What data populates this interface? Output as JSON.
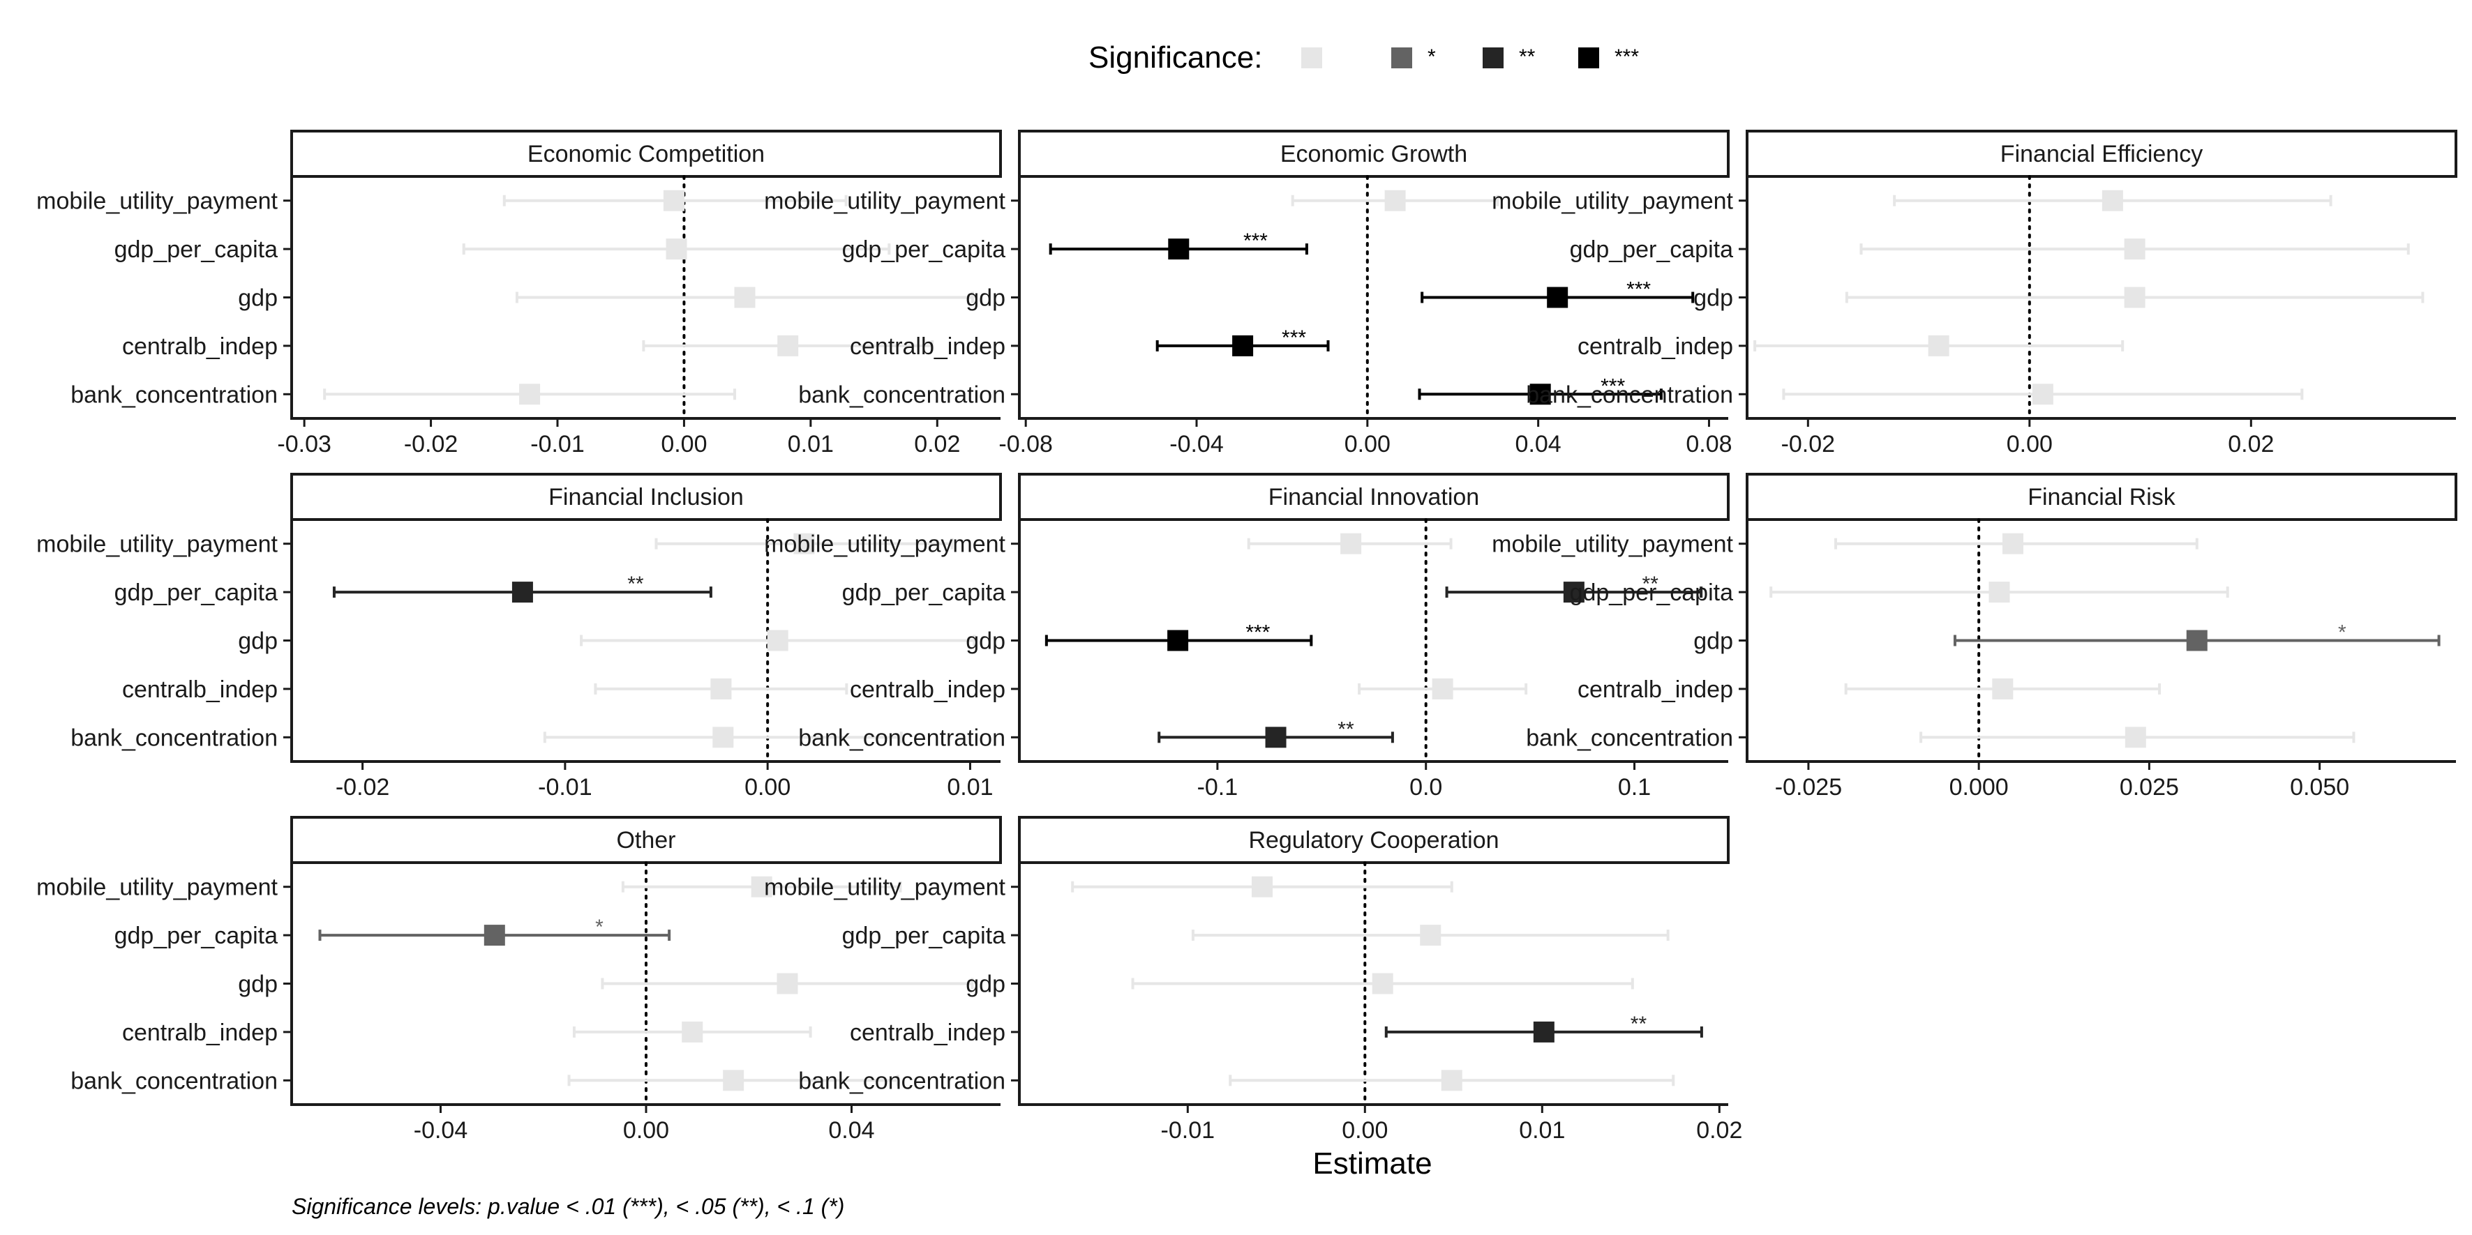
{
  "legend": {
    "title": "Significance:",
    "levels": [
      {
        "label": "",
        "color": "#e6e6e6"
      },
      {
        "label": "*",
        "color": "#636363"
      },
      {
        "label": "**",
        "color": "#252525"
      },
      {
        "label": "***",
        "color": "#000000"
      }
    ]
  },
  "xaxis_title": "Estimate",
  "caption": "Significance levels: p.value < .01 (***), < .05 (**), < .1 (*)",
  "chart_data": {
    "type": "coefficient-plot",
    "y_categories": [
      "mobile_utility_payment",
      "gdp_per_capita",
      "gdp",
      "centralb_indep",
      "bank_concentration"
    ],
    "reference_line": 0,
    "panels": [
      {
        "title": "Economic Competition",
        "xlim": [
          -0.031,
          0.025
        ],
        "xticks": [
          -0.03,
          -0.02,
          -0.01,
          0,
          0.01,
          0.02
        ],
        "xtick_labels": [
          "-0.03",
          "-0.02",
          "-0.01",
          "0.00",
          "0.01",
          "0.02"
        ],
        "points": [
          {
            "term": "mobile_utility_payment",
            "estimate": -0.0008,
            "low": -0.0142,
            "high": 0.0128,
            "sig": ""
          },
          {
            "term": "gdp_per_capita",
            "estimate": -0.0006,
            "low": -0.0174,
            "high": 0.0162,
            "sig": ""
          },
          {
            "term": "gdp",
            "estimate": 0.0048,
            "low": -0.0132,
            "high": 0.0228,
            "sig": ""
          },
          {
            "term": "centralb_indep",
            "estimate": 0.0082,
            "low": -0.0032,
            "high": 0.0196,
            "sig": ""
          },
          {
            "term": "bank_concentration",
            "estimate": -0.0122,
            "low": -0.0284,
            "high": 0.004,
            "sig": ""
          }
        ]
      },
      {
        "title": "Economic Growth",
        "xlim": [
          -0.0815,
          0.0845
        ],
        "xticks": [
          -0.08,
          -0.04,
          0,
          0.04,
          0.08
        ],
        "xtick_labels": [
          "-0.08",
          "-0.04",
          "0.00",
          "0.04",
          "0.08"
        ],
        "points": [
          {
            "term": "mobile_utility_payment",
            "estimate": 0.0065,
            "low": -0.0175,
            "high": 0.0305,
            "sig": ""
          },
          {
            "term": "gdp_per_capita",
            "estimate": -0.0442,
            "low": -0.0742,
            "high": -0.0142,
            "sig": "***"
          },
          {
            "term": "gdp",
            "estimate": 0.0445,
            "low": 0.0128,
            "high": 0.0762,
            "sig": "***"
          },
          {
            "term": "centralb_indep",
            "estimate": -0.0292,
            "low": -0.0492,
            "high": -0.0092,
            "sig": "***"
          },
          {
            "term": "bank_concentration",
            "estimate": 0.0405,
            "low": 0.0122,
            "high": 0.0688,
            "sig": "***"
          }
        ]
      },
      {
        "title": "Financial Efficiency",
        "xlim": [
          -0.0255,
          0.0385
        ],
        "xticks": [
          -0.02,
          0,
          0.02
        ],
        "xtick_labels": [
          "-0.02",
          "0.00",
          "0.02"
        ],
        "points": [
          {
            "term": "mobile_utility_payment",
            "estimate": 0.0075,
            "low": -0.0122,
            "high": 0.0272,
            "sig": ""
          },
          {
            "term": "gdp_per_capita",
            "estimate": 0.0095,
            "low": -0.0152,
            "high": 0.0342,
            "sig": ""
          },
          {
            "term": "gdp",
            "estimate": 0.0095,
            "low": -0.0165,
            "high": 0.0355,
            "sig": ""
          },
          {
            "term": "centralb_indep",
            "estimate": -0.0082,
            "low": -0.0248,
            "high": 0.0084,
            "sig": ""
          },
          {
            "term": "bank_concentration",
            "estimate": 0.0012,
            "low": -0.0222,
            "high": 0.0246,
            "sig": ""
          }
        ]
      },
      {
        "title": "Financial Inclusion",
        "xlim": [
          -0.0235,
          0.0115
        ],
        "xticks": [
          -0.02,
          -0.01,
          0,
          0.01
        ],
        "xtick_labels": [
          "-0.02",
          "-0.01",
          "0.00",
          "0.01"
        ],
        "points": [
          {
            "term": "mobile_utility_payment",
            "estimate": 0.0018,
            "low": -0.0055,
            "high": 0.0091,
            "sig": ""
          },
          {
            "term": "gdp_per_capita",
            "estimate": -0.0121,
            "low": -0.0214,
            "high": -0.0028,
            "sig": "**"
          },
          {
            "term": "gdp",
            "estimate": 0.0005,
            "low": -0.0092,
            "high": 0.0102,
            "sig": ""
          },
          {
            "term": "centralb_indep",
            "estimate": -0.0023,
            "low": -0.0085,
            "high": 0.0039,
            "sig": ""
          },
          {
            "term": "bank_concentration",
            "estimate": -0.0022,
            "low": -0.011,
            "high": 0.0066,
            "sig": ""
          }
        ]
      },
      {
        "title": "Financial Innovation",
        "xlim": [
          -0.195,
          0.145
        ],
        "xticks": [
          -0.1,
          0,
          0.1
        ],
        "xtick_labels": [
          "-0.1",
          "0.0",
          "0.1"
        ],
        "points": [
          {
            "term": "mobile_utility_payment",
            "estimate": -0.036,
            "low": -0.085,
            "high": 0.012,
            "sig": ""
          },
          {
            "term": "gdp_per_capita",
            "estimate": 0.071,
            "low": 0.01,
            "high": 0.132,
            "sig": "**"
          },
          {
            "term": "gdp",
            "estimate": -0.119,
            "low": -0.182,
            "high": -0.055,
            "sig": "***"
          },
          {
            "term": "centralb_indep",
            "estimate": 0.008,
            "low": -0.032,
            "high": 0.048,
            "sig": ""
          },
          {
            "term": "bank_concentration",
            "estimate": -0.072,
            "low": -0.128,
            "high": -0.016,
            "sig": "**"
          }
        ]
      },
      {
        "title": "Financial Risk",
        "xlim": [
          -0.034,
          0.07
        ],
        "xticks": [
          -0.025,
          0,
          0.025,
          0.05
        ],
        "xtick_labels": [
          "-0.025",
          "0.000",
          "0.025",
          "0.050"
        ],
        "points": [
          {
            "term": "mobile_utility_payment",
            "estimate": 0.005,
            "low": -0.021,
            "high": 0.032,
            "sig": ""
          },
          {
            "term": "gdp_per_capita",
            "estimate": 0.003,
            "low": -0.0305,
            "high": 0.0365,
            "sig": ""
          },
          {
            "term": "gdp",
            "estimate": 0.032,
            "low": -0.0035,
            "high": 0.0675,
            "sig": "*"
          },
          {
            "term": "centralb_indep",
            "estimate": 0.0035,
            "low": -0.0195,
            "high": 0.0265,
            "sig": ""
          },
          {
            "term": "bank_concentration",
            "estimate": 0.023,
            "low": -0.0085,
            "high": 0.055,
            "sig": ""
          }
        ]
      },
      {
        "title": "Other",
        "xlim": [
          -0.069,
          0.069
        ],
        "xticks": [
          -0.04,
          0,
          0.04
        ],
        "xtick_labels": [
          "-0.04",
          "0.00",
          "0.04"
        ],
        "points": [
          {
            "term": "mobile_utility_payment",
            "estimate": 0.0225,
            "low": -0.0045,
            "high": 0.0495,
            "sig": ""
          },
          {
            "term": "gdp_per_capita",
            "estimate": -0.0295,
            "low": -0.0635,
            "high": 0.0045,
            "sig": "*"
          },
          {
            "term": "gdp",
            "estimate": 0.0275,
            "low": -0.0085,
            "high": 0.0635,
            "sig": ""
          },
          {
            "term": "centralb_indep",
            "estimate": 0.009,
            "low": -0.014,
            "high": 0.032,
            "sig": ""
          },
          {
            "term": "bank_concentration",
            "estimate": 0.017,
            "low": -0.015,
            "high": 0.049,
            "sig": ""
          }
        ]
      },
      {
        "title": "Regulatory Cooperation",
        "xlim": [
          -0.0195,
          0.0205
        ],
        "xticks": [
          -0.01,
          0,
          0.01,
          0.02
        ],
        "xtick_labels": [
          "-0.01",
          "0.00",
          "0.01",
          "0.02"
        ],
        "points": [
          {
            "term": "mobile_utility_payment",
            "estimate": -0.0058,
            "low": -0.0165,
            "high": 0.0049,
            "sig": ""
          },
          {
            "term": "gdp_per_capita",
            "estimate": 0.0037,
            "low": -0.0097,
            "high": 0.0171,
            "sig": ""
          },
          {
            "term": "gdp",
            "estimate": 0.001,
            "low": -0.0131,
            "high": 0.0151,
            "sig": ""
          },
          {
            "term": "centralb_indep",
            "estimate": 0.0101,
            "low": 0.0012,
            "high": 0.019,
            "sig": "**"
          },
          {
            "term": "bank_concentration",
            "estimate": 0.0049,
            "low": -0.0076,
            "high": 0.0174,
            "sig": ""
          }
        ]
      }
    ]
  }
}
